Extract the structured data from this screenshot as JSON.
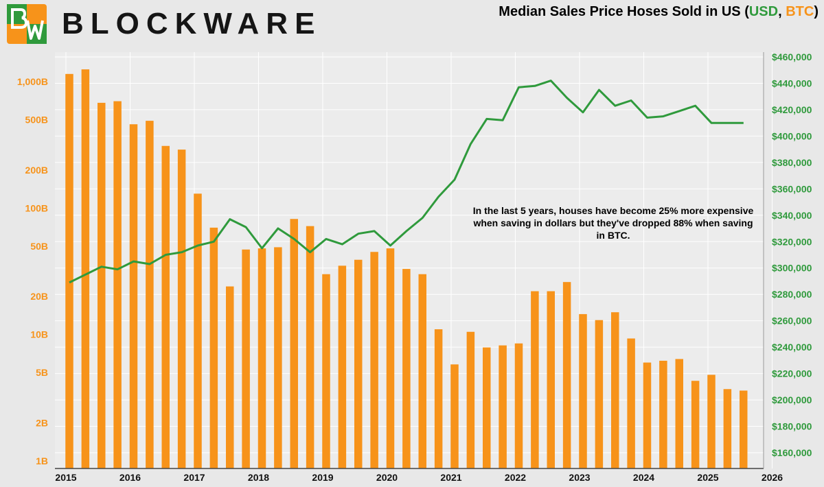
{
  "brand": {
    "name": "BLOCKWARE"
  },
  "title": {
    "main": "Median Sales Price Hoses Sold in US (",
    "usd": "USD",
    "sep": ", ",
    "btc": "BTC",
    "close": ")"
  },
  "annotation": "In the last 5 years, houses have become 25% more expensive when saving in dollars but they've dropped 88% when saving in BTC.",
  "colors": {
    "btc": "#f7931a",
    "usd": "#2f9a3c",
    "background": "#e8e8e8",
    "grid": "#ffffff"
  },
  "chart_data": {
    "type": "bar",
    "grid": true,
    "x_ticks": [
      "2015",
      "2016",
      "2017",
      "2018",
      "2019",
      "2020",
      "2021",
      "2022",
      "2023",
      "2024",
      "2025",
      "2026"
    ],
    "y_left": {
      "scale": "log",
      "range": [
        1,
        1500
      ],
      "ticks": [
        1,
        2,
        5,
        10,
        20,
        50,
        100,
        200,
        500,
        1000
      ],
      "tick_labels": [
        "1B",
        "2B",
        "5B",
        "10B",
        "20B",
        "50B",
        "100B",
        "200B",
        "500B",
        "1,000B"
      ]
    },
    "y_right": {
      "scale": "linear",
      "range": [
        150000,
        460000
      ],
      "ticks": [
        160000,
        180000,
        200000,
        220000,
        240000,
        260000,
        280000,
        300000,
        320000,
        340000,
        360000,
        380000,
        400000,
        420000,
        440000,
        460000
      ],
      "tick_labels": [
        "$160,000",
        "$180,000",
        "$200,000",
        "$220,000",
        "$240,000",
        "$260,000",
        "$280,000",
        "$300,000",
        "$320,000",
        "$340,000",
        "$360,000",
        "$380,000",
        "$400,000",
        "$420,000",
        "$440,000",
        "$460,000"
      ]
    },
    "series": [
      {
        "axis": "left",
        "type": "bar",
        "x": [
          "2015-01",
          "2015-04",
          "2015-07",
          "2015-10",
          "2016-01",
          "2016-04",
          "2016-07",
          "2016-10",
          "2017-01",
          "2017-04",
          "2017-07",
          "2017-10",
          "2018-01",
          "2018-04",
          "2018-07",
          "2018-10",
          "2019-01",
          "2019-04",
          "2019-07",
          "2019-10",
          "2020-01",
          "2020-04",
          "2020-07",
          "2020-10",
          "2021-01",
          "2021-04",
          "2021-07",
          "2021-10",
          "2022-01",
          "2022-04",
          "2022-07",
          "2022-10",
          "2023-01",
          "2023-04",
          "2023-07",
          "2023-10",
          "2024-01",
          "2024-04",
          "2024-07",
          "2024-10",
          "2025-01",
          "2025-04",
          "2025-07"
        ],
        "values": [
          1150,
          1250,
          680,
          700,
          460,
          490,
          310,
          290,
          130,
          70,
          24,
          47,
          48,
          49,
          82,
          72,
          30,
          35,
          39,
          45,
          48,
          33,
          30,
          11,
          5.8,
          10.5,
          7.9,
          8.2,
          8.5,
          22,
          22,
          26,
          14.5,
          13,
          15,
          9.3,
          6,
          6.2,
          6.4,
          4.3,
          4.8,
          3.7,
          3.6
        ]
      },
      {
        "axis": "right",
        "type": "line",
        "x": [
          "2015-01",
          "2015-04",
          "2015-07",
          "2015-10",
          "2016-01",
          "2016-04",
          "2016-07",
          "2016-10",
          "2017-01",
          "2017-04",
          "2017-07",
          "2017-10",
          "2018-01",
          "2018-04",
          "2018-07",
          "2018-10",
          "2019-01",
          "2019-04",
          "2019-07",
          "2019-10",
          "2020-01",
          "2020-04",
          "2020-07",
          "2020-10",
          "2021-01",
          "2021-04",
          "2021-07",
          "2021-10",
          "2022-01",
          "2022-04",
          "2022-07",
          "2022-10",
          "2023-01",
          "2023-04",
          "2023-07",
          "2023-10",
          "2024-01",
          "2024-04",
          "2024-07",
          "2024-10",
          "2025-01",
          "2025-04",
          "2025-07"
        ],
        "values": [
          289000,
          295000,
          301000,
          299000,
          305000,
          303000,
          310000,
          312000,
          317000,
          320000,
          337000,
          331000,
          315000,
          330000,
          322000,
          312000,
          322000,
          318000,
          326000,
          328000,
          317000,
          328000,
          338000,
          354000,
          367000,
          394000,
          413000,
          412000,
          437000,
          438000,
          442000,
          429000,
          418000,
          435000,
          423000,
          427000,
          414000,
          415000,
          419000,
          423000,
          410000,
          410000,
          410000
        ]
      }
    ]
  }
}
